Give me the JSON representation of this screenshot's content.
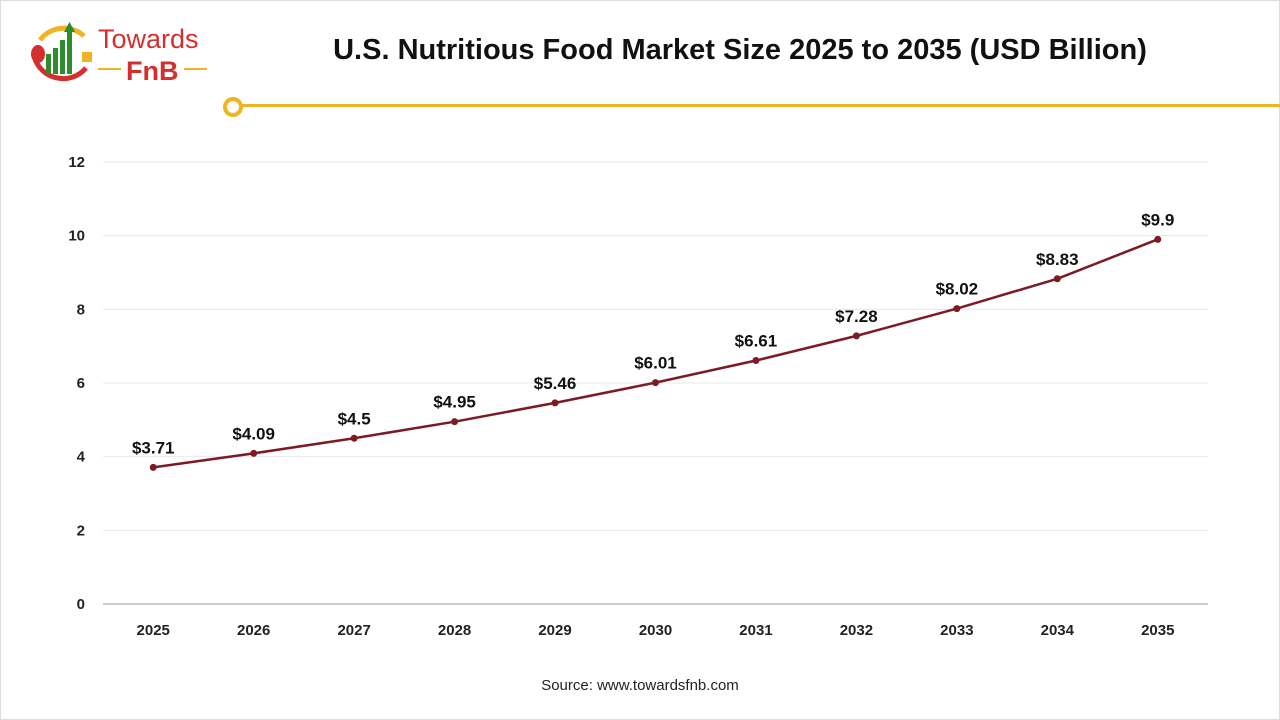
{
  "logo": {
    "text_line1": "Towards",
    "text_line2": "FnB"
  },
  "title": "U.S. Nutritious Food Market Size 2025 to 2035 (USD Billion)",
  "source": "Source: www.towardsfnb.com",
  "colors": {
    "line": "#7b1c24",
    "accent": "#f0b323",
    "logo_red": "#d32f2f",
    "logo_green": "#2e8b2e"
  },
  "chart_data": {
    "type": "line",
    "title": "U.S. Nutritious Food Market Size 2025 to 2035 (USD Billion)",
    "categories": [
      "2025",
      "2026",
      "2027",
      "2028",
      "2029",
      "2030",
      "2031",
      "2032",
      "2033",
      "2034",
      "2035"
    ],
    "values": [
      3.71,
      4.09,
      4.5,
      4.95,
      5.46,
      6.01,
      6.61,
      7.28,
      8.02,
      8.83,
      9.9
    ],
    "data_labels": [
      "$3.71",
      "$4.09",
      "$4.5",
      "$4.95",
      "$5.46",
      "$6.01",
      "$6.61",
      "$7.28",
      "$8.02",
      "$8.83",
      "$9.9"
    ],
    "yticks": [
      0,
      2,
      4,
      6,
      8,
      10,
      12
    ],
    "ylim": [
      0,
      12
    ],
    "grid": true,
    "xlabel": "",
    "ylabel": ""
  }
}
